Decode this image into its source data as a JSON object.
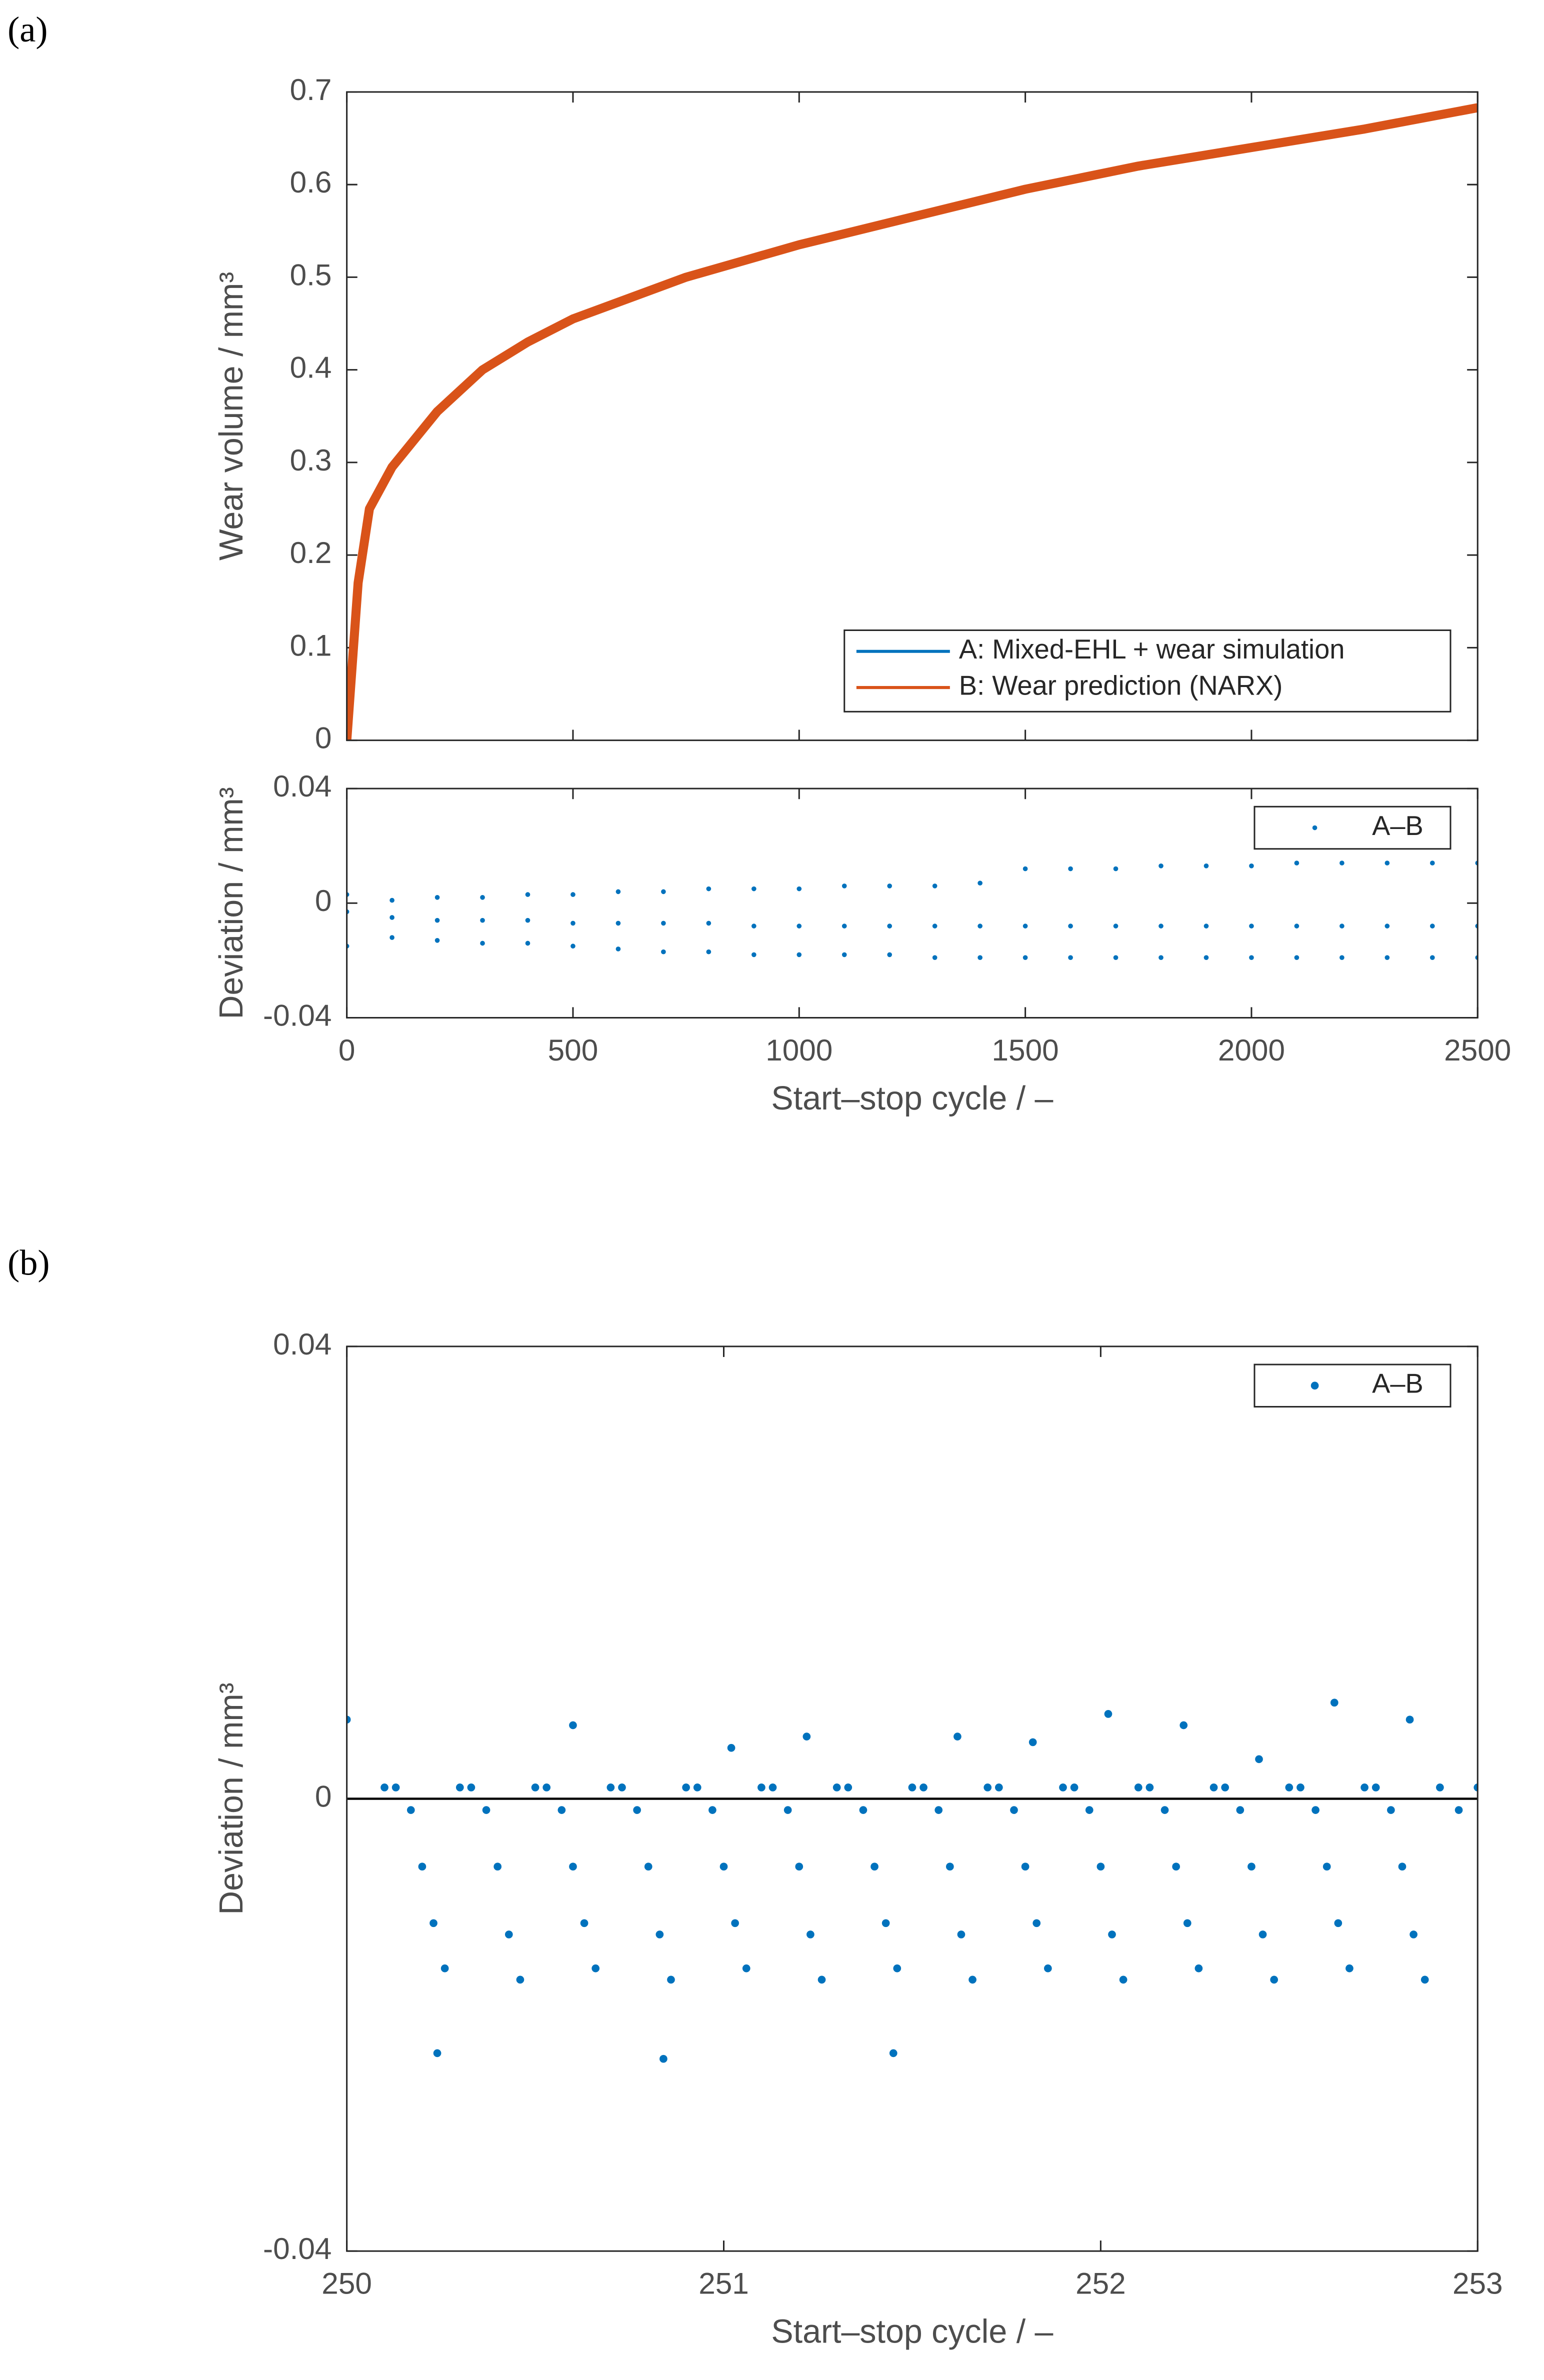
{
  "panel_labels": [
    "(a)",
    "(b)"
  ],
  "chart_data": [
    {
      "type": "line",
      "ylabel": "Wear volume / mm³",
      "x": [
        0,
        25,
        50,
        100,
        200,
        300,
        400,
        500,
        750,
        1000,
        1250,
        1500,
        1750,
        2000,
        2250,
        2500
      ],
      "xlim": [
        0,
        2500
      ],
      "xticks": [
        0,
        500,
        1000,
        1500,
        2000,
        2500
      ],
      "ylim": [
        0,
        0.7
      ],
      "yticks": [
        0,
        0.1,
        0.2,
        0.3,
        0.4,
        0.5,
        0.6,
        0.7
      ],
      "legend": "lower right",
      "series": [
        {
          "name": "A: Mixed-EHL + wear simulation",
          "color": "#0072bd",
          "values": [
            0,
            0.168,
            0.248,
            0.294,
            0.354,
            0.399,
            0.429,
            0.454,
            0.499,
            0.534,
            0.564,
            0.594,
            0.619,
            0.639,
            0.659,
            0.681
          ]
        },
        {
          "name": "B: Wear prediction (NARX)",
          "color": "#d95319",
          "values": [
            0,
            0.17,
            0.25,
            0.295,
            0.355,
            0.4,
            0.43,
            0.455,
            0.5,
            0.535,
            0.565,
            0.595,
            0.62,
            0.64,
            0.66,
            0.683
          ]
        }
      ]
    },
    {
      "type": "scatter",
      "xlabel": "Start–stop cycle / –",
      "ylabel": "Deviation / mm³",
      "xlim": [
        0,
        2500
      ],
      "xticks": [
        0,
        500,
        1000,
        1500,
        2000,
        2500
      ],
      "ylim": [
        -0.04,
        0.04
      ],
      "yticks": [
        -0.04,
        0,
        0.04
      ],
      "legend": "upper right",
      "series": [
        {
          "name": "A–B",
          "color": "#0072bd",
          "x": [
            0,
            0,
            0,
            100,
            100,
            100,
            200,
            200,
            200,
            300,
            300,
            300,
            400,
            400,
            400,
            500,
            500,
            500,
            600,
            600,
            600,
            700,
            700,
            700,
            800,
            800,
            800,
            900,
            900,
            900,
            1000,
            1000,
            1000,
            1100,
            1100,
            1100,
            1200,
            1200,
            1200,
            1300,
            1300,
            1300,
            1400,
            1400,
            1400,
            1500,
            1500,
            1500,
            1600,
            1600,
            1600,
            1700,
            1700,
            1700,
            1800,
            1800,
            1800,
            1900,
            1900,
            1900,
            2000,
            2000,
            2000,
            2100,
            2100,
            2100,
            2200,
            2200,
            2200,
            2300,
            2300,
            2300,
            2400,
            2400,
            2400,
            2500,
            2500,
            2500
          ],
          "values": [
            0.003,
            -0.003,
            -0.015,
            0.001,
            -0.005,
            -0.012,
            0.002,
            -0.006,
            -0.013,
            0.002,
            -0.006,
            -0.014,
            0.003,
            -0.006,
            -0.014,
            0.003,
            -0.007,
            -0.015,
            0.004,
            -0.007,
            -0.016,
            0.004,
            -0.007,
            -0.017,
            0.005,
            -0.007,
            -0.017,
            0.005,
            -0.008,
            -0.018,
            0.005,
            -0.008,
            -0.018,
            0.006,
            -0.008,
            -0.018,
            0.006,
            -0.008,
            -0.018,
            0.006,
            -0.008,
            -0.019,
            0.007,
            -0.008,
            -0.019,
            0.012,
            -0.008,
            -0.019,
            0.012,
            -0.008,
            -0.019,
            0.012,
            -0.008,
            -0.019,
            0.013,
            -0.008,
            -0.019,
            0.013,
            -0.008,
            -0.019,
            0.013,
            -0.008,
            -0.019,
            0.014,
            -0.008,
            -0.019,
            0.014,
            -0.008,
            -0.019,
            0.014,
            -0.008,
            -0.019,
            0.014,
            -0.008,
            -0.019,
            0.014,
            -0.008,
            -0.019
          ]
        }
      ]
    },
    {
      "type": "scatter",
      "xlabel": "Start–stop cycle / –",
      "ylabel": "Deviation / mm³",
      "xlim": [
        250,
        253
      ],
      "xticks": [
        250,
        251,
        252,
        253
      ],
      "ylim": [
        -0.04,
        0.04
      ],
      "yticks": [
        -0.04,
        0,
        0.04
      ],
      "reference_line": 0,
      "legend": "upper right",
      "series": [
        {
          "name": "A–B",
          "color": "#0072bd",
          "x": [
            250.0,
            250.1,
            250.13,
            250.17,
            250.2,
            250.23,
            250.26,
            250.3,
            250.33,
            250.37,
            250.4,
            250.43,
            250.46,
            250.5,
            250.53,
            250.57,
            250.6,
            250.63,
            250.66,
            250.7,
            250.73,
            250.77,
            250.8,
            250.83,
            250.86,
            250.9,
            250.93,
            250.97,
            251.0,
            251.03,
            251.06,
            251.1,
            251.13,
            251.17,
            251.2,
            251.23,
            251.26,
            251.3,
            251.33,
            251.37,
            251.4,
            251.43,
            251.46,
            251.5,
            251.53,
            251.57,
            251.6,
            251.63,
            251.66,
            251.7,
            251.73,
            251.77,
            251.8,
            251.83,
            251.86,
            251.9,
            251.93,
            251.97,
            252.0,
            252.03,
            252.06,
            252.1,
            252.13,
            252.17,
            252.2,
            252.23,
            252.26,
            252.3,
            252.33,
            252.37,
            252.4,
            252.43,
            252.46,
            252.5,
            252.53,
            252.57,
            252.6,
            252.63,
            252.66,
            252.7,
            252.73,
            252.77,
            252.8,
            252.83,
            252.86,
            252.9,
            252.95,
            253.0,
            250.24,
            250.84,
            251.45,
            250.6,
            251.02,
            251.22,
            251.62,
            251.82,
            252.02,
            252.22,
            252.42,
            252.62,
            252.82
          ],
          "values": [
            0.007,
            0.001,
            0.001,
            -0.001,
            -0.006,
            -0.011,
            -0.015,
            0.001,
            0.001,
            -0.001,
            -0.006,
            -0.012,
            -0.016,
            0.001,
            0.001,
            -0.001,
            -0.006,
            -0.011,
            -0.015,
            0.001,
            0.001,
            -0.001,
            -0.006,
            -0.012,
            -0.016,
            0.001,
            0.001,
            -0.001,
            -0.006,
            -0.011,
            -0.015,
            0.001,
            0.001,
            -0.001,
            -0.006,
            -0.012,
            -0.016,
            0.001,
            0.001,
            -0.001,
            -0.006,
            -0.011,
            -0.015,
            0.001,
            0.001,
            -0.001,
            -0.006,
            -0.012,
            -0.016,
            0.001,
            0.001,
            -0.001,
            -0.006,
            -0.011,
            -0.015,
            0.001,
            0.001,
            -0.001,
            -0.006,
            -0.012,
            -0.016,
            0.001,
            0.001,
            -0.001,
            -0.006,
            -0.011,
            -0.015,
            0.001,
            0.001,
            -0.001,
            -0.006,
            -0.012,
            -0.016,
            0.001,
            0.001,
            -0.001,
            -0.006,
            -0.011,
            -0.015,
            0.001,
            0.001,
            -0.001,
            -0.006,
            -0.012,
            -0.016,
            0.001,
            -0.001,
            0.001,
            -0.0225,
            -0.023,
            -0.0225,
            0.0065,
            0.0045,
            0.0055,
            0.0055,
            0.005,
            0.0075,
            0.0065,
            0.0035,
            0.0085,
            0.007
          ]
        }
      ]
    }
  ]
}
